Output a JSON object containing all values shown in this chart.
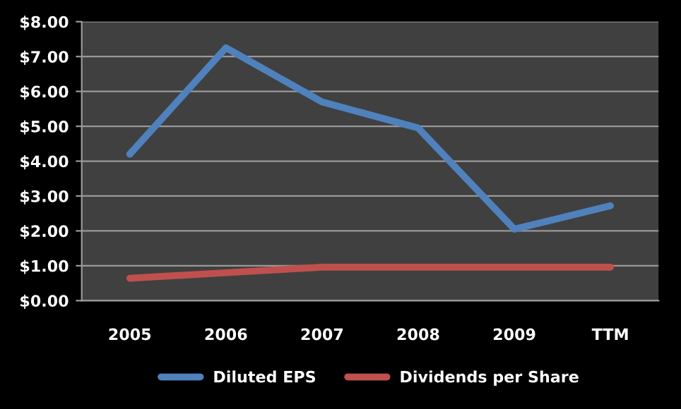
{
  "chart_data": {
    "type": "line",
    "categories": [
      "2005",
      "2006",
      "2007",
      "2008",
      "2009",
      "TTM"
    ],
    "series": [
      {
        "name": "Diluted EPS",
        "color": "#4f81bd",
        "values": [
          4.2,
          7.25,
          5.7,
          4.95,
          2.05,
          2.72
        ]
      },
      {
        "name": "Dividends per Share",
        "color": "#c0504d",
        "values": [
          0.64,
          0.8,
          0.96,
          0.96,
          0.96,
          0.96
        ]
      }
    ],
    "ylim": [
      0,
      8
    ],
    "yticks": [
      {
        "value": 0,
        "label": "$0.00"
      },
      {
        "value": 1,
        "label": "$1.00"
      },
      {
        "value": 2,
        "label": "$2.00"
      },
      {
        "value": 3,
        "label": "$3.00"
      },
      {
        "value": 4,
        "label": "$4.00"
      },
      {
        "value": 5,
        "label": "$5.00"
      },
      {
        "value": 6,
        "label": "$6.00"
      },
      {
        "value": 7,
        "label": "$7.00"
      },
      {
        "value": 8,
        "label": "$8.00"
      }
    ],
    "grid": "y",
    "legend": "bottom",
    "marker": "none",
    "line_style": "solid"
  }
}
